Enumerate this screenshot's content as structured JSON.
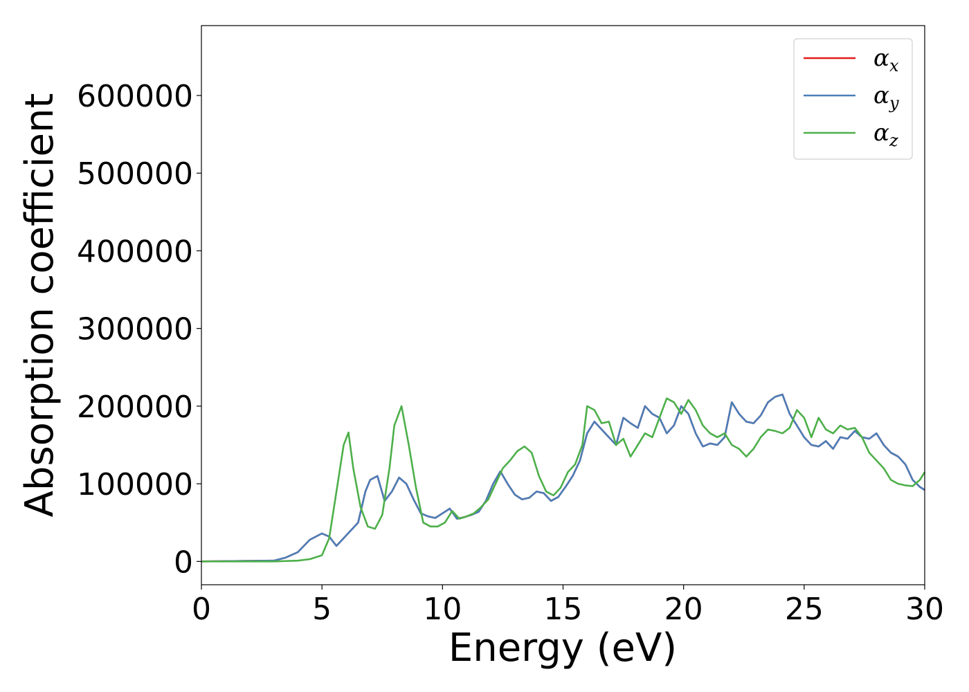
{
  "chart_data": {
    "type": "line",
    "title": "",
    "xlabel": "Energy (eV)",
    "ylabel": "Absorption coefficient",
    "xlim": [
      0,
      30
    ],
    "ylim": [
      -30000,
      690000
    ],
    "xticks": [
      0,
      5,
      10,
      15,
      20,
      25,
      30
    ],
    "yticks": [
      0,
      100000,
      200000,
      300000,
      400000,
      500000,
      600000
    ],
    "grid": false,
    "legend_position": "top-right",
    "series": [
      {
        "name": "α_x",
        "legend_symbol": "α",
        "legend_sub": "x",
        "color": "#e41a1c",
        "x": [
          0,
          3,
          3.5,
          4,
          4.5,
          5,
          5.3,
          5.6,
          5.9,
          6.2,
          6.5,
          6.8,
          7.0,
          7.3,
          7.6,
          7.9,
          8.2,
          8.5,
          8.8,
          9.1,
          9.4,
          9.7,
          10.0,
          10.3,
          10.6,
          10.9,
          11.2,
          11.5,
          11.8,
          12.1,
          12.4,
          12.7,
          13.0,
          13.3,
          13.6,
          13.9,
          14.2,
          14.5,
          14.8,
          15.1,
          15.4,
          15.7,
          16.0,
          16.3,
          16.6,
          16.9,
          17.2,
          17.5,
          17.8,
          18.1,
          18.4,
          18.7,
          19.0,
          19.3,
          19.6,
          19.9,
          20.2,
          20.5,
          20.8,
          21.1,
          21.4,
          21.7,
          22.0,
          22.3,
          22.6,
          22.9,
          23.2,
          23.5,
          23.8,
          24.1,
          24.4,
          24.7,
          25.0,
          25.3,
          25.6,
          25.9,
          26.2,
          26.5,
          26.8,
          27.1,
          27.4,
          27.7,
          28.0,
          28.3,
          28.6,
          28.9,
          29.2,
          29.5,
          29.8,
          30.0
        ],
        "values": [
          0,
          1000,
          5000,
          12000,
          28000,
          36000,
          32000,
          20000,
          30000,
          40000,
          50000,
          90000,
          105000,
          110000,
          78000,
          90000,
          108000,
          100000,
          80000,
          62000,
          58000,
          56000,
          62000,
          68000,
          55000,
          57000,
          60000,
          64000,
          78000,
          100000,
          116000,
          100000,
          86000,
          80000,
          82000,
          90000,
          88000,
          78000,
          83000,
          96000,
          110000,
          130000,
          165000,
          180000,
          170000,
          160000,
          150000,
          185000,
          178000,
          172000,
          200000,
          190000,
          185000,
          165000,
          175000,
          200000,
          190000,
          165000,
          148000,
          152000,
          150000,
          160000,
          205000,
          190000,
          180000,
          178000,
          188000,
          205000,
          212000,
          215000,
          190000,
          175000,
          160000,
          150000,
          148000,
          155000,
          145000,
          160000,
          158000,
          168000,
          160000,
          158000,
          165000,
          150000,
          140000,
          135000,
          125000,
          105000,
          96000,
          92000
        ]
      },
      {
        "name": "α_y",
        "legend_symbol": "α",
        "legend_sub": "y",
        "color": "#4a7eb8",
        "x": [
          0,
          3,
          3.5,
          4,
          4.5,
          5,
          5.3,
          5.6,
          5.9,
          6.2,
          6.5,
          6.8,
          7.0,
          7.3,
          7.6,
          7.9,
          8.2,
          8.5,
          8.8,
          9.1,
          9.4,
          9.7,
          10.0,
          10.3,
          10.6,
          10.9,
          11.2,
          11.5,
          11.8,
          12.1,
          12.4,
          12.7,
          13.0,
          13.3,
          13.6,
          13.9,
          14.2,
          14.5,
          14.8,
          15.1,
          15.4,
          15.7,
          16.0,
          16.3,
          16.6,
          16.9,
          17.2,
          17.5,
          17.8,
          18.1,
          18.4,
          18.7,
          19.0,
          19.3,
          19.6,
          19.9,
          20.2,
          20.5,
          20.8,
          21.1,
          21.4,
          21.7,
          22.0,
          22.3,
          22.6,
          22.9,
          23.2,
          23.5,
          23.8,
          24.1,
          24.4,
          24.7,
          25.0,
          25.3,
          25.6,
          25.9,
          26.2,
          26.5,
          26.8,
          27.1,
          27.4,
          27.7,
          28.0,
          28.3,
          28.6,
          28.9,
          29.2,
          29.5,
          29.8,
          30.0
        ],
        "values": [
          0,
          1000,
          5000,
          12000,
          28000,
          36000,
          32000,
          20000,
          30000,
          40000,
          50000,
          90000,
          105000,
          110000,
          78000,
          90000,
          108000,
          100000,
          80000,
          62000,
          58000,
          56000,
          62000,
          68000,
          55000,
          57000,
          60000,
          64000,
          78000,
          100000,
          116000,
          100000,
          86000,
          80000,
          82000,
          90000,
          88000,
          78000,
          83000,
          96000,
          110000,
          130000,
          165000,
          180000,
          170000,
          160000,
          150000,
          185000,
          178000,
          172000,
          200000,
          190000,
          185000,
          165000,
          175000,
          200000,
          190000,
          165000,
          148000,
          152000,
          150000,
          160000,
          205000,
          190000,
          180000,
          178000,
          188000,
          205000,
          212000,
          215000,
          190000,
          175000,
          160000,
          150000,
          148000,
          155000,
          145000,
          160000,
          158000,
          168000,
          160000,
          158000,
          165000,
          150000,
          140000,
          135000,
          125000,
          105000,
          96000,
          92000
        ]
      },
      {
        "name": "α_z",
        "legend_symbol": "α",
        "legend_sub": "z",
        "color": "#4daf4a",
        "x": [
          0,
          3,
          4,
          4.5,
          5,
          5.3,
          5.6,
          5.9,
          6.1,
          6.3,
          6.6,
          6.9,
          7.2,
          7.5,
          7.8,
          8.0,
          8.3,
          8.6,
          8.9,
          9.2,
          9.5,
          9.8,
          10.1,
          10.4,
          10.7,
          11.0,
          11.3,
          11.6,
          11.9,
          12.2,
          12.5,
          12.8,
          13.1,
          13.4,
          13.7,
          14.0,
          14.3,
          14.6,
          14.9,
          15.2,
          15.5,
          15.8,
          16.0,
          16.3,
          16.6,
          16.9,
          17.2,
          17.5,
          17.8,
          18.1,
          18.4,
          18.7,
          19.0,
          19.3,
          19.6,
          19.9,
          20.2,
          20.5,
          20.8,
          21.1,
          21.4,
          21.7,
          22.0,
          22.3,
          22.6,
          22.9,
          23.2,
          23.5,
          23.8,
          24.1,
          24.4,
          24.7,
          25.0,
          25.3,
          25.6,
          25.9,
          26.2,
          26.5,
          26.8,
          27.1,
          27.4,
          27.7,
          28.0,
          28.3,
          28.6,
          28.9,
          29.2,
          29.5,
          29.8,
          30.0
        ],
        "values": [
          0,
          0,
          1000,
          3000,
          8000,
          30000,
          90000,
          150000,
          166000,
          120000,
          70000,
          45000,
          42000,
          60000,
          120000,
          175000,
          200000,
          150000,
          95000,
          50000,
          45000,
          45000,
          50000,
          65000,
          55000,
          58000,
          62000,
          70000,
          80000,
          100000,
          120000,
          130000,
          142000,
          148000,
          140000,
          110000,
          90000,
          85000,
          95000,
          115000,
          125000,
          150000,
          200000,
          195000,
          178000,
          180000,
          150000,
          158000,
          135000,
          150000,
          165000,
          160000,
          185000,
          210000,
          205000,
          190000,
          208000,
          195000,
          175000,
          165000,
          160000,
          165000,
          150000,
          145000,
          135000,
          145000,
          160000,
          170000,
          168000,
          165000,
          172000,
          195000,
          185000,
          160000,
          185000,
          170000,
          165000,
          175000,
          170000,
          172000,
          160000,
          140000,
          130000,
          120000,
          105000,
          100000,
          98000,
          97000,
          105000,
          115000
        ]
      }
    ]
  }
}
